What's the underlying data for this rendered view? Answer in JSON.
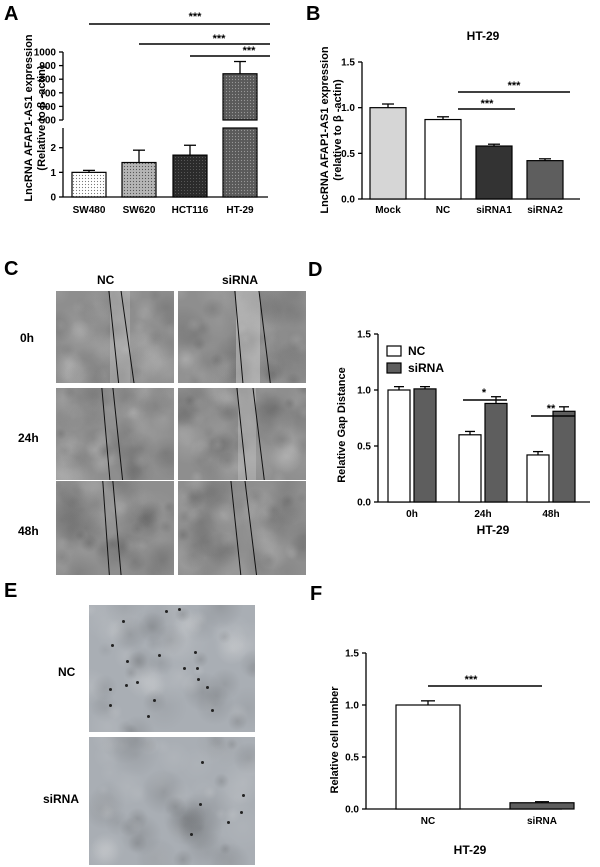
{
  "panels": {
    "a": "A",
    "b": "B",
    "c": "C",
    "d": "D",
    "e": "E",
    "f": "F"
  },
  "colors": {
    "white_bar": "#ffffff",
    "light_bar": "#d6d6d6",
    "mid_bar": "#aeaeae",
    "dark_bar": "#333333",
    "darkgray_bar": "#5e5e5e",
    "photo_base": "#8e8e8e",
    "transwell_base": "#a9aeb4"
  },
  "panel_a": {
    "ylabel_line1": "LncRNA AFAP1-AS1 expression",
    "ylabel_line2": "(Relative to β -actin)",
    "upper_ticks": [
      "1000",
      "900",
      "800",
      "700",
      "600",
      "500"
    ],
    "lower_ticks": [
      "2",
      "1",
      "0"
    ],
    "sig": [
      "***",
      "***",
      "***"
    ]
  },
  "panel_b": {
    "title": "HT-29",
    "ylabel_line1": "LncRNA AFAP1-AS1 expression",
    "ylabel_line2": "(relative to β -actin)",
    "ticks": [
      "1.5",
      "1.0",
      "0.5",
      "0.0"
    ],
    "sig": [
      "***",
      "***"
    ]
  },
  "panel_c": {
    "col_labels": [
      "NC",
      "siRNA"
    ],
    "row_labels": [
      "0h",
      "24h",
      "48h"
    ]
  },
  "panel_d": {
    "ylabel": "Relative Gap Distance",
    "xtitle": "HT-29",
    "ticks": [
      "1.5",
      "1.0",
      "0.5",
      "0.0"
    ],
    "legend": [
      "NC",
      "siRNA"
    ],
    "sig": [
      "*",
      "**"
    ]
  },
  "panel_e": {
    "row_labels": [
      "NC",
      "siRNA"
    ]
  },
  "panel_f": {
    "ylabel": "Relative cell number",
    "xtitle": "HT-29",
    "ticks": [
      "1.5",
      "1.0",
      "0.5",
      "0.0"
    ],
    "sig": [
      "***"
    ]
  },
  "chart_data": [
    {
      "id": "A",
      "type": "bar",
      "categories": [
        "SW480",
        "SW620",
        "HCT116",
        "HT-29"
      ],
      "values": [
        1.0,
        1.4,
        1.7,
        840
      ],
      "errors": [
        0.08,
        0.5,
        0.4,
        90
      ],
      "ylabel": "LncRNA AFAP1-AS1 expression (Relative to β -actin)",
      "y_axis_break": {
        "lower": [
          0,
          2.8
        ],
        "upper": [
          500,
          1000
        ]
      },
      "comparisons": [
        [
          "SW480",
          "HT-29"
        ],
        [
          "SW620",
          "HT-29"
        ],
        [
          "HCT116",
          "HT-29"
        ]
      ],
      "significance": [
        "***",
        "***",
        "***"
      ]
    },
    {
      "id": "B",
      "type": "bar",
      "title": "HT-29",
      "categories": [
        "Mock",
        "NC",
        "siRNA1",
        "siRNA2"
      ],
      "values": [
        1.0,
        0.87,
        0.58,
        0.42
      ],
      "errors": [
        0.04,
        0.03,
        0.02,
        0.02
      ],
      "ylabel": "LncRNA AFAP1-AS1 expression (relative to β -actin)",
      "ylim": [
        0,
        1.5
      ],
      "comparisons": [
        [
          "NC",
          "siRNA1"
        ],
        [
          "NC",
          "siRNA2"
        ]
      ],
      "significance": [
        "***",
        "***"
      ]
    },
    {
      "id": "D",
      "type": "bar",
      "categories": [
        "0h",
        "24h",
        "48h"
      ],
      "series": [
        {
          "name": "NC",
          "values": [
            1.0,
            0.6,
            0.42
          ],
          "errors": [
            0.03,
            0.03,
            0.03
          ]
        },
        {
          "name": "siRNA",
          "values": [
            1.01,
            0.88,
            0.81
          ],
          "errors": [
            0.02,
            0.06,
            0.04
          ]
        }
      ],
      "xlabel": "HT-29",
      "ylabel": "Relative Gap Distance",
      "ylim": [
        0,
        1.5
      ],
      "legend": "top-left",
      "significance": [
        "",
        "*",
        "**"
      ]
    },
    {
      "id": "F",
      "type": "bar",
      "categories": [
        "NC",
        "siRNA"
      ],
      "values": [
        1.0,
        0.06
      ],
      "errors": [
        0.04,
        0.01
      ],
      "xlabel": "HT-29",
      "ylabel": "Relative cell number",
      "ylim": [
        0,
        1.5
      ],
      "significance": [
        "***"
      ]
    }
  ]
}
